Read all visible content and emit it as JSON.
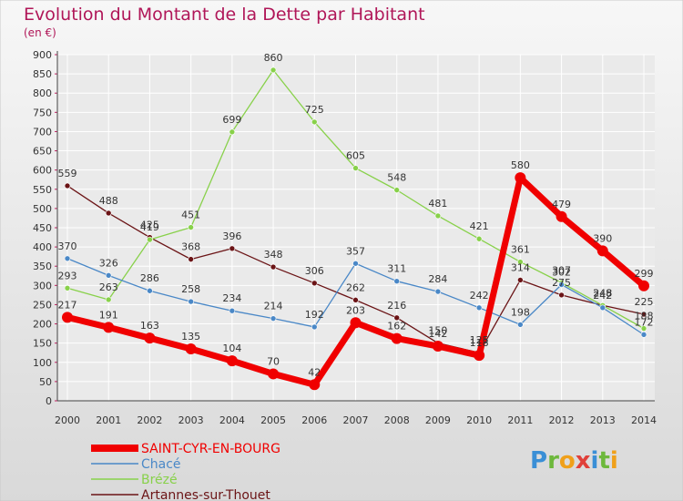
{
  "chart_data": {
    "type": "line",
    "title": "Evolution du Montant de la Dette par Habitant",
    "subtitle": "(en €)",
    "x": [
      "2000",
      "2001",
      "2002",
      "2003",
      "2004",
      "2005",
      "2006",
      "2007",
      "2008",
      "2009",
      "2010",
      "2011",
      "2012",
      "2013",
      "2014"
    ],
    "yticks": [
      "0",
      "50",
      "100",
      "150",
      "200",
      "250",
      "300",
      "350",
      "400",
      "450",
      "500",
      "550",
      "600",
      "650",
      "700",
      "750",
      "800",
      "850",
      "900"
    ],
    "ylim": [
      0,
      900
    ],
    "grid": true,
    "series": [
      {
        "name": "Artannes-sur-Thouet",
        "color": "#6b1416",
        "values": [
          559,
          488,
          425,
          368,
          396,
          348,
          306,
          262,
          216,
          150,
          125,
          314,
          275,
          248,
          225
        ],
        "labels": [
          "559",
          "488",
          "425",
          "368",
          "396",
          "348",
          "306",
          "262",
          "216",
          "150",
          "125",
          "314",
          "275",
          "248",
          "225"
        ]
      },
      {
        "name": "Brézé",
        "color": "#88d14a",
        "values": [
          293,
          263,
          419,
          451,
          699,
          860,
          725,
          605,
          548,
          481,
          421,
          361,
          307,
          248,
          188
        ],
        "labels": [
          "293",
          "263",
          "419",
          "451",
          "699",
          "860",
          "725",
          "605",
          "548",
          "481",
          "421",
          "361",
          "307",
          "248",
          "188"
        ]
      },
      {
        "name": "Chacé",
        "color": "#4a88c7",
        "values": [
          370,
          326,
          286,
          258,
          234,
          214,
          192,
          357,
          311,
          284,
          242,
          198,
          302,
          242,
          172
        ],
        "labels": [
          "370",
          "326",
          "286",
          "258",
          "234",
          "214",
          "192",
          "357",
          "311",
          "284",
          "242",
          "198",
          "302",
          "242",
          "172"
        ]
      },
      {
        "name": "SAINT-CYR-EN-BOURG",
        "color": "#f00000",
        "values": [
          217,
          191,
          163,
          135,
          104,
          70,
          42,
          203,
          162,
          142,
          118,
          580,
          479,
          390,
          299
        ],
        "labels": [
          "217",
          "191",
          "163",
          "135",
          "104",
          "70",
          "42",
          "203",
          "162",
          "142",
          "118",
          "580",
          "479",
          "390",
          "299"
        ]
      }
    ],
    "legend": [
      {
        "name": "SAINT-CYR-EN-BOURG",
        "color": "#f00000"
      },
      {
        "name": "Chacé",
        "color": "#4a88c7"
      },
      {
        "name": "Brézé",
        "color": "#88d14a"
      },
      {
        "name": "Artannes-sur-Thouet",
        "color": "#6b1416"
      }
    ]
  },
  "logo": {
    "text": "Proxiti"
  }
}
